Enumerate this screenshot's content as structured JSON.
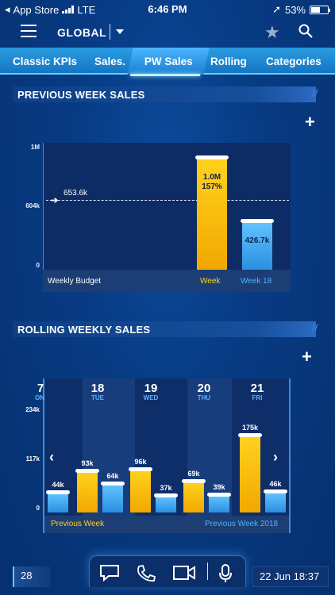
{
  "status_bar": {
    "carrier": "App Store",
    "network": "LTE",
    "time": "6:46 PM",
    "battery": "53%"
  },
  "header": {
    "scope": "GLOBAL",
    "icons": [
      "menu-icon",
      "star-icon",
      "search-icon"
    ]
  },
  "tabs": [
    {
      "label": "Classic KPIs",
      "active": false
    },
    {
      "label": "Sales.",
      "active": false
    },
    {
      "label": "PW Sales",
      "active": true
    },
    {
      "label": "Rolling",
      "active": false
    },
    {
      "label": "Categories",
      "active": false
    }
  ],
  "previous_week": {
    "title": "PREVIOUS WEEK SALES",
    "y_ticks": [
      "1M",
      "604k",
      "0"
    ],
    "budget_value": "653.6k",
    "footer": {
      "left": "Weekly Budget",
      "mid": "Week",
      "right": "Week 18"
    },
    "bar_labels": {
      "week_value": "1.0M",
      "week_pct": "157%",
      "week18_value": "426.7k"
    }
  },
  "rolling": {
    "title": "ROLLING WEEKLY SALES",
    "y_ticks": [
      "234k",
      "117k",
      "0"
    ],
    "days": [
      {
        "date": "7",
        "weekday": "ON"
      },
      {
        "date": "18",
        "weekday": "TUE"
      },
      {
        "date": "19",
        "weekday": "WED"
      },
      {
        "date": "20",
        "weekday": "THU"
      },
      {
        "date": "21",
        "weekday": "FRI"
      }
    ],
    "legend": {
      "left": "Previous Week",
      "right": "Previous Week 2018"
    }
  },
  "bottom": {
    "count": "28",
    "datetime": "22 Jun 18:37",
    "dock_icons": [
      "chat-icon",
      "phone-icon",
      "video-icon",
      "microphone-icon"
    ]
  },
  "colors": {
    "yellow": "#f5b800",
    "blue": "#42a8f0",
    "background": "#083b84",
    "budget_label": "#ffd21e",
    "legend_right": "#4db4ff"
  },
  "chart_data": [
    {
      "type": "bar",
      "title": "PREVIOUS WEEK SALES",
      "categories": [
        "Week",
        "Week 18"
      ],
      "values": [
        1000000,
        426700
      ],
      "data_labels": [
        "1.0M 157%",
        "426.7k"
      ],
      "reference_line": {
        "label": "Weekly Budget",
        "value": 653600
      },
      "ylim": [
        0,
        1000000
      ],
      "y_ticks": [
        "0",
        "604k",
        "1M"
      ]
    },
    {
      "type": "bar",
      "title": "ROLLING WEEKLY SALES",
      "categories": [
        "7",
        "18",
        "19",
        "20",
        "21"
      ],
      "series": [
        {
          "name": "Previous Week",
          "values": [
            null,
            93000,
            96000,
            69000,
            175000
          ]
        },
        {
          "name": "Previous Week 2018",
          "values": [
            44000,
            64000,
            37000,
            39000,
            46000
          ]
        }
      ],
      "data_labels": {
        "Previous Week": [
          "",
          "93k",
          "96k",
          "69k",
          "175k"
        ],
        "Previous Week 2018": [
          "44k",
          "64k",
          "37k",
          "39k",
          "46k"
        ]
      },
      "ylim": [
        0,
        234000
      ],
      "y_ticks": [
        "0",
        "117k",
        "234k"
      ]
    }
  ]
}
